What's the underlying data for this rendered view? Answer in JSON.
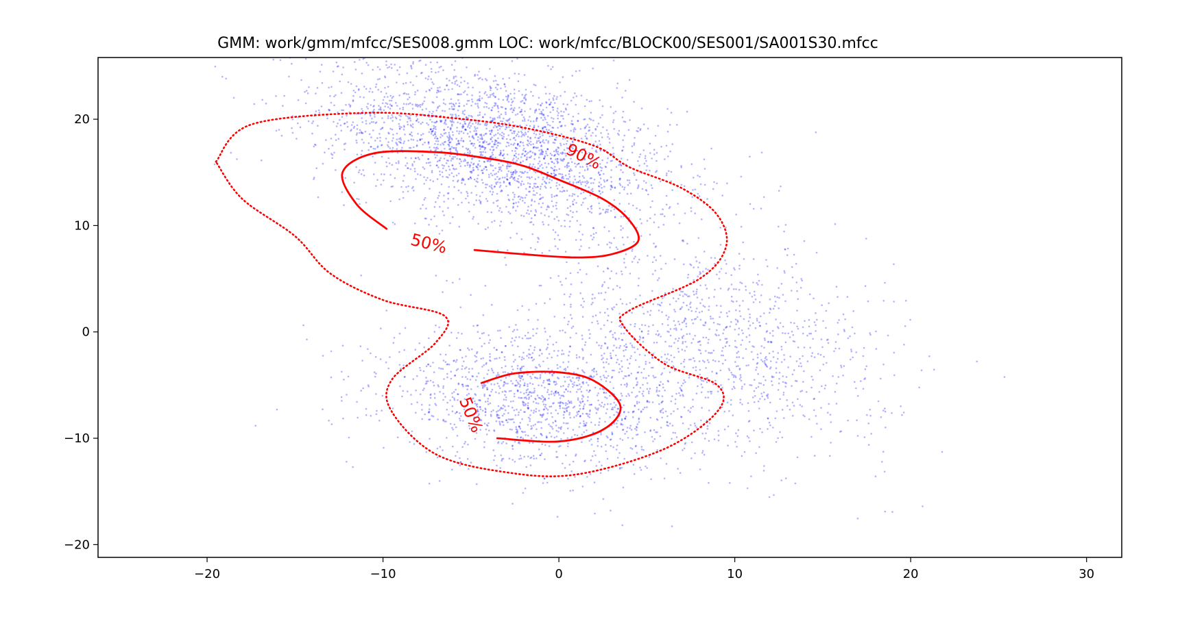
{
  "chart_data": {
    "type": "scatter",
    "title": "GMM: work/gmm/mfcc/SES008.gmm  LOC: work/mfcc/BLOCK00/SES001/SA001S30.mfcc",
    "xlabel": "",
    "ylabel": "",
    "xlim": [
      -26.2,
      32
    ],
    "ylim": [
      -21.2,
      25.8
    ],
    "xticks": [
      -20,
      -10,
      0,
      10,
      20,
      30
    ],
    "xtick_labels": [
      "−20",
      "−10",
      "0",
      "10",
      "20",
      "30"
    ],
    "yticks": [
      -20,
      -10,
      0,
      10,
      20
    ],
    "ytick_labels": [
      "−20",
      "−10",
      "0",
      "10",
      "20"
    ],
    "grid": false,
    "series": [
      {
        "kind": "scatter",
        "color": "#0000ff",
        "approx_point_count": 5000,
        "clusters": [
          {
            "mean": [
              -3.5,
              17.5
            ],
            "sd": [
              5.0,
              4.0
            ],
            "rho": -0.45,
            "weight": 0.5
          },
          {
            "mean": [
              -1.0,
              -6.5
            ],
            "sd": [
              4.5,
              3.2
            ],
            "rho": -0.2,
            "weight": 0.28
          },
          {
            "mean": [
              9.0,
              -1.0
            ],
            "sd": [
              5.0,
              5.0
            ],
            "rho": -0.3,
            "weight": 0.22
          }
        ]
      },
      {
        "kind": "contour",
        "level": "90%",
        "style": "dotted",
        "color": "#ff0000",
        "points": [
          [
            -19.5,
            16
          ],
          [
            -17.5,
            19.5
          ],
          [
            -11,
            20.6
          ],
          [
            -6,
            20.1
          ],
          [
            -2,
            19.2
          ],
          [
            2,
            17.5
          ],
          [
            4,
            15.5
          ],
          [
            7,
            13.5
          ],
          [
            9,
            11
          ],
          [
            9.5,
            8
          ],
          [
            8,
            5
          ],
          [
            4,
            2
          ],
          [
            3.7,
            0.5
          ],
          [
            6,
            -3
          ],
          [
            9,
            -5
          ],
          [
            9,
            -7.5
          ],
          [
            6,
            -11
          ],
          [
            1,
            -13.4
          ],
          [
            -3,
            -13.2
          ],
          [
            -7,
            -11.5
          ],
          [
            -9.5,
            -7.5
          ],
          [
            -9.5,
            -4.5
          ],
          [
            -7,
            -1
          ],
          [
            -6.5,
            1.5
          ],
          [
            -10,
            3
          ],
          [
            -13,
            5.5
          ],
          [
            -15,
            9
          ],
          [
            -18,
            12.5
          ],
          [
            -19.5,
            16
          ]
        ]
      },
      {
        "kind": "contour",
        "level": "50%",
        "style": "solid",
        "color": "#ff0000",
        "points": [
          [
            -9.8,
            9.7
          ],
          [
            -11.5,
            12
          ],
          [
            -12.3,
            15
          ],
          [
            -10.5,
            16.8
          ],
          [
            -7,
            16.9
          ],
          [
            -4,
            16.3
          ],
          [
            -2,
            15.6
          ],
          [
            0,
            14.3
          ],
          [
            2.5,
            12.5
          ],
          [
            4,
            10.5
          ],
          [
            4.5,
            8.5
          ],
          [
            3,
            7.3
          ],
          [
            1,
            7
          ],
          [
            -2,
            7.3
          ],
          [
            -4.8,
            7.7
          ]
        ]
      },
      {
        "kind": "contour",
        "level": "50%",
        "style": "solid",
        "color": "#ff0000",
        "points": [
          [
            -4.4,
            -4.8
          ],
          [
            -2.5,
            -3.9
          ],
          [
            0,
            -3.8
          ],
          [
            2,
            -4.6
          ],
          [
            3.5,
            -7
          ],
          [
            2.5,
            -9.2
          ],
          [
            0,
            -10.3
          ],
          [
            -3.5,
            -10
          ]
        ]
      }
    ],
    "contour_labels": [
      {
        "text": "90%",
        "x": 1.4,
        "y": 16.5,
        "rotation": 27
      },
      {
        "text": "50%",
        "x": -7.4,
        "y": 8.3,
        "rotation": 14
      },
      {
        "text": "50%",
        "x": -5.0,
        "y": -7.8,
        "rotation": 68
      }
    ]
  }
}
